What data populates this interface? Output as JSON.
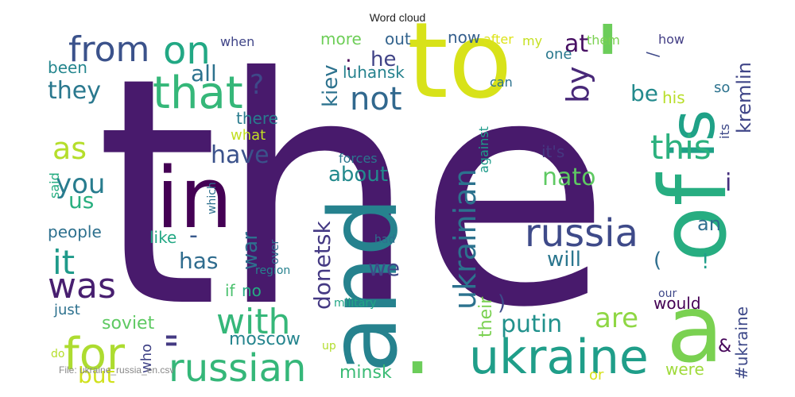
{
  "chart_data": {
    "type": "wordcloud",
    "title": "Word cloud",
    "footer": "File: ukraine_russia_en.csv",
    "words": [
      {
        "text": "the",
        "color": "#481a6c"
      },
      {
        "text": "to",
        "color": "#d8e219"
      },
      {
        "text": "'",
        "color": "#6ccd5a"
      },
      {
        "text": "of",
        "color": "#27ad81"
      },
      {
        "text": "is",
        "color": "#1fa187"
      },
      {
        "text": "and",
        "color": "#26828e"
      },
      {
        "text": "a",
        "color": "#7ad151"
      },
      {
        "text": "in",
        "color": "#440154"
      },
      {
        "text": ".",
        "color": "#6ccd5a"
      },
      {
        "text": "ukraine",
        "color": "#1f9e89"
      },
      {
        "text": "russia",
        "color": "#3e4a89"
      },
      {
        "text": "russian",
        "color": "#35b779"
      },
      {
        "text": "ukrainian",
        "color": "#2c728e"
      },
      {
        "text": "that",
        "color": "#35b779"
      },
      {
        "text": "on",
        "color": "#22a884"
      },
      {
        "text": "for",
        "color": "#addc30"
      },
      {
        "text": "from",
        "color": "#3b528b"
      },
      {
        "text": "with",
        "color": "#35b779"
      },
      {
        "text": "was",
        "color": "#481f70"
      },
      {
        "text": "it",
        "color": "#1f9a8a"
      },
      {
        "text": "this",
        "color": "#2cb17e"
      },
      {
        "text": "not",
        "color": "#31688e"
      },
      {
        "text": "as",
        "color": "#b5de2b"
      },
      {
        "text": "you",
        "color": "#287c8e"
      },
      {
        "text": "\"",
        "color": "#443a83"
      },
      {
        "text": "have",
        "color": "#3b528b"
      },
      {
        "text": "by",
        "color": "#482878"
      },
      {
        "text": "at",
        "color": "#471063"
      },
      {
        "text": "are",
        "color": "#8fd744"
      },
      {
        "text": "they",
        "color": "#2a788e"
      },
      {
        "text": "putin",
        "color": "#21918c"
      },
      {
        "text": "nato",
        "color": "#5ec962"
      },
      {
        "text": "but",
        "color": "#d0e11c"
      },
      {
        "text": "all",
        "color": "#2c728e"
      },
      {
        "text": "?",
        "color": "#3e4989"
      },
      {
        "text": "he",
        "color": "#414487"
      },
      {
        "text": "about",
        "color": "#238a8d"
      },
      {
        "text": "donetsk",
        "color": "#443983"
      },
      {
        "text": "i",
        "color": "#46307e"
      },
      {
        "text": "us",
        "color": "#29af7f"
      },
      {
        "text": "has",
        "color": "#2f6c8e"
      },
      {
        "text": "war",
        "color": "#2e6f8e"
      },
      {
        "text": "will",
        "color": "#2a768e"
      },
      {
        "text": "we",
        "color": "#3f4788"
      },
      {
        "text": "soviet",
        "color": "#5ec962"
      },
      {
        "text": "moscow",
        "color": "#25858e"
      },
      {
        "text": "minsk",
        "color": "#3bbb75"
      },
      {
        "text": "kiev",
        "color": "#2c728e"
      },
      {
        "text": "luhansk",
        "color": "#26828e"
      },
      {
        "text": "be",
        "color": "#238a8d"
      },
      {
        "text": "kremlin",
        "color": "#404688"
      },
      {
        "text": "more",
        "color": "#6ece58"
      },
      {
        "text": "out",
        "color": "#33638d"
      },
      {
        "text": "now",
        "color": "#355f8d"
      },
      {
        "text": "one",
        "color": "#2a788e"
      },
      {
        "text": "been",
        "color": "#24868e"
      },
      {
        "text": "there",
        "color": "#297b8e"
      },
      {
        "text": "what",
        "color": "#c2df23"
      },
      {
        "text": "people",
        "color": "#2d708e"
      },
      {
        "text": "like",
        "color": "#22a884"
      },
      {
        "text": "-",
        "color": "#38598c"
      },
      {
        "text": "if",
        "color": "#4ac16d"
      },
      {
        "text": "no",
        "color": "#25ab82"
      },
      {
        "text": "their",
        "color": "#7ad151"
      },
      {
        "text": "would",
        "color": "#440154"
      },
      {
        "text": "were",
        "color": "#9fda3a"
      },
      {
        "text": "#ukraine",
        "color": "#3e4989"
      },
      {
        "text": "&",
        "color": "#450559"
      },
      {
        "text": "an",
        "color": "#2e6e8e"
      },
      {
        "text": "(",
        "color": "#2e6e8e"
      },
      {
        "text": ")",
        "color": "#3e4a89"
      },
      {
        "text": "!",
        "color": "#1f9e89"
      },
      {
        "text": "it's",
        "color": "#453781"
      },
      {
        "text": "his",
        "color": "#b8de29"
      },
      {
        "text": "so",
        "color": "#2c728e"
      },
      {
        "text": "its",
        "color": "#3e4989"
      },
      {
        "text": "forces",
        "color": "#2b758e"
      },
      {
        "text": "against",
        "color": "#1e9b8a"
      },
      {
        "text": "after",
        "color": "#dde318"
      },
      {
        "text": "my",
        "color": "#c5e021"
      },
      {
        "text": "them",
        "color": "#7ad151"
      },
      {
        "text": "how",
        "color": "#433e85"
      },
      {
        "text": "can",
        "color": "#2c718e"
      },
      {
        "text": "when",
        "color": "#404588"
      },
      {
        "text": "said",
        "color": "#26ad81"
      },
      {
        "text": "which",
        "color": "#2e6f8e"
      },
      {
        "text": "over",
        "color": "#2e6e8e"
      },
      {
        "text": "region",
        "color": "#26818e"
      },
      {
        "text": "had",
        "color": "#2d708e"
      },
      {
        "text": "military",
        "color": "#21a685"
      },
      {
        "text": "just",
        "color": "#2d718e"
      },
      {
        "text": "who",
        "color": "#414487"
      },
      {
        "text": "do",
        "color": "#b5de2b"
      },
      {
        "text": "up",
        "color": "#b2dd2d"
      },
      {
        "text": "or",
        "color": "#d8e219"
      },
      {
        "text": "our",
        "color": "#3f4889"
      },
      {
        "text": ":",
        "color": "#440154"
      },
      {
        "text": "/",
        "color": "#3e4989"
      }
    ]
  }
}
